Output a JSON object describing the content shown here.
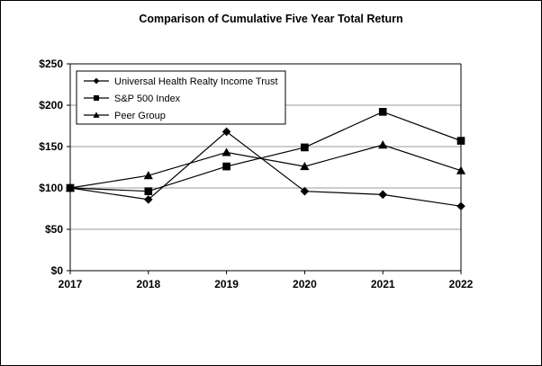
{
  "chart_data": {
    "type": "line",
    "title": "Comparison of Cumulative Five Year Total Return",
    "xlabel": "",
    "ylabel": "",
    "categories": [
      "2017",
      "2018",
      "2019",
      "2020",
      "2021",
      "2022"
    ],
    "ylim": [
      0,
      250
    ],
    "yticks": [
      0,
      50,
      100,
      150,
      200,
      250
    ],
    "ytick_labels": [
      "$0",
      "$50",
      "$100",
      "$150",
      "$200",
      "$250"
    ],
    "grid": true,
    "legend_position": "top-left",
    "series": [
      {
        "name": "Universal Health Realty Income Trust",
        "marker": "diamond",
        "values": [
          100,
          86,
          168,
          96,
          92,
          78
        ]
      },
      {
        "name": "S&P 500 Index",
        "marker": "square",
        "values": [
          100,
          96,
          126,
          149,
          192,
          157
        ]
      },
      {
        "name": "Peer Group",
        "marker": "triangle",
        "values": [
          100,
          115,
          143,
          126,
          152,
          121
        ]
      }
    ]
  }
}
